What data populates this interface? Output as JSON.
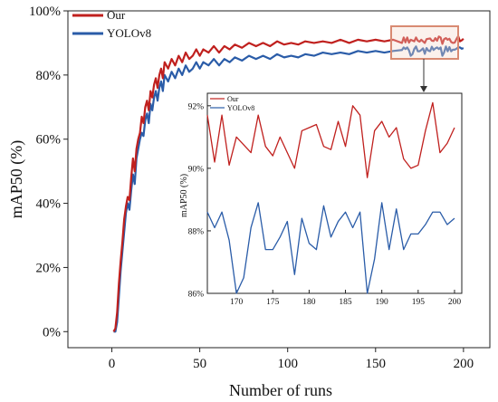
{
  "chart_data": [
    {
      "type": "line",
      "xlabel": "Number of runs",
      "ylabel": "mAP50 (%)",
      "xlim": [
        -25,
        215
      ],
      "ylim": [
        -5,
        100
      ],
      "xticks": [
        0,
        50,
        100,
        150,
        200
      ],
      "xtick_labels": [
        "0",
        "50",
        "100",
        "150",
        "200"
      ],
      "yticks": [
        0,
        20,
        40,
        60,
        80,
        100
      ],
      "ytick_labels": [
        "0%",
        "20%",
        "40%",
        "60%",
        "80%",
        "100%"
      ],
      "legend_position": "top-left",
      "colors": {
        "Our": "#c0201e",
        "YOLOv8": "#2a5ca8"
      },
      "series": [
        {
          "name": "Our",
          "points": [
            [
              1,
              0
            ],
            [
              2,
              1
            ],
            [
              3,
              6
            ],
            [
              4,
              15
            ],
            [
              5,
              22
            ],
            [
              6,
              28
            ],
            [
              7,
              35
            ],
            [
              8,
              39
            ],
            [
              9,
              42
            ],
            [
              10,
              41
            ],
            [
              11,
              48
            ],
            [
              12,
              54
            ],
            [
              13,
              50
            ],
            [
              14,
              57
            ],
            [
              15,
              60
            ],
            [
              16,
              62
            ],
            [
              17,
              67
            ],
            [
              18,
              65
            ],
            [
              19,
              70
            ],
            [
              20,
              72
            ],
            [
              21,
              69
            ],
            [
              22,
              75
            ],
            [
              23,
              73
            ],
            [
              24,
              77
            ],
            [
              25,
              79
            ],
            [
              26,
              76
            ],
            [
              27,
              80
            ],
            [
              28,
              82
            ],
            [
              29,
              79
            ],
            [
              30,
              84
            ],
            [
              32,
              82
            ],
            [
              34,
              85
            ],
            [
              36,
              83
            ],
            [
              38,
              86
            ],
            [
              40,
              84
            ],
            [
              42,
              87
            ],
            [
              44,
              85
            ],
            [
              46,
              86
            ],
            [
              48,
              88
            ],
            [
              50,
              86
            ],
            [
              52,
              88
            ],
            [
              55,
              87
            ],
            [
              58,
              89
            ],
            [
              61,
              87
            ],
            [
              64,
              89
            ],
            [
              67,
              88
            ],
            [
              70,
              89.5
            ],
            [
              74,
              88.5
            ],
            [
              78,
              90
            ],
            [
              82,
              89
            ],
            [
              86,
              90
            ],
            [
              90,
              89
            ],
            [
              94,
              90.5
            ],
            [
              98,
              89.5
            ],
            [
              102,
              90
            ],
            [
              106,
              89.5
            ],
            [
              110,
              90.5
            ],
            [
              115,
              90
            ],
            [
              120,
              90.5
            ],
            [
              125,
              90
            ],
            [
              130,
              91
            ],
            [
              135,
              90
            ],
            [
              140,
              91
            ],
            [
              145,
              90.5
            ],
            [
              150,
              91
            ],
            [
              155,
              90.5
            ],
            [
              160,
              91
            ],
            [
              165,
              90
            ],
            [
              166,
              91.7
            ],
            [
              167,
              90.2
            ],
            [
              168,
              91.7
            ],
            [
              169,
              90.1
            ],
            [
              170,
              91.0
            ],
            [
              172,
              90.5
            ],
            [
              173,
              91.7
            ],
            [
              174,
              90.7
            ],
            [
              175,
              90.4
            ],
            [
              176,
              91.0
            ],
            [
              177,
              90.5
            ],
            [
              178,
              90.0
            ],
            [
              179,
              91.2
            ],
            [
              180,
              91.3
            ],
            [
              181,
              91.4
            ],
            [
              182,
              90.7
            ],
            [
              183,
              90.6
            ],
            [
              184,
              91.5
            ],
            [
              185,
              90.7
            ],
            [
              186,
              92.0
            ],
            [
              187,
              91.7
            ],
            [
              188,
              89.7
            ],
            [
              189,
              91.2
            ],
            [
              190,
              91.5
            ],
            [
              191,
              91.0
            ],
            [
              192,
              91.3
            ],
            [
              193,
              90.3
            ],
            [
              194,
              90.0
            ],
            [
              195,
              90.1
            ],
            [
              196,
              91.2
            ],
            [
              197,
              92.1
            ],
            [
              198,
              90.5
            ],
            [
              199,
              90.8
            ],
            [
              200,
              91.3
            ]
          ]
        },
        {
          "name": "YOLOv8",
          "points": [
            [
              1,
              0
            ],
            [
              2,
              0
            ],
            [
              3,
              3
            ],
            [
              4,
              11
            ],
            [
              5,
              19
            ],
            [
              6,
              25
            ],
            [
              7,
              31
            ],
            [
              8,
              37
            ],
            [
              9,
              40
            ],
            [
              10,
              38
            ],
            [
              11,
              44
            ],
            [
              12,
              49
            ],
            [
              13,
              46
            ],
            [
              14,
              54
            ],
            [
              15,
              57
            ],
            [
              16,
              60
            ],
            [
              17,
              62
            ],
            [
              18,
              61
            ],
            [
              19,
              66
            ],
            [
              20,
              68
            ],
            [
              21,
              65
            ],
            [
              22,
              71
            ],
            [
              23,
              69
            ],
            [
              24,
              73
            ],
            [
              25,
              75
            ],
            [
              26,
              72
            ],
            [
              27,
              76
            ],
            [
              28,
              78
            ],
            [
              29,
              75
            ],
            [
              30,
              80
            ],
            [
              32,
              78
            ],
            [
              34,
              81
            ],
            [
              36,
              79
            ],
            [
              38,
              82
            ],
            [
              40,
              80
            ],
            [
              42,
              83
            ],
            [
              44,
              81
            ],
            [
              46,
              82
            ],
            [
              48,
              84
            ],
            [
              50,
              82
            ],
            [
              52,
              84
            ],
            [
              55,
              83
            ],
            [
              58,
              85
            ],
            [
              61,
              83
            ],
            [
              64,
              85
            ],
            [
              67,
              84
            ],
            [
              70,
              85.5
            ],
            [
              74,
              84.5
            ],
            [
              78,
              86
            ],
            [
              82,
              85
            ],
            [
              86,
              86
            ],
            [
              90,
              85
            ],
            [
              94,
              86.5
            ],
            [
              98,
              85.5
            ],
            [
              102,
              86
            ],
            [
              106,
              85.5
            ],
            [
              110,
              86.5
            ],
            [
              115,
              86
            ],
            [
              120,
              87
            ],
            [
              125,
              86.5
            ],
            [
              130,
              87
            ],
            [
              135,
              86.5
            ],
            [
              140,
              87.5
            ],
            [
              145,
              87
            ],
            [
              150,
              87.5
            ],
            [
              155,
              87
            ],
            [
              160,
              87.5
            ],
            [
              165,
              87.8
            ],
            [
              166,
              88.6
            ],
            [
              167,
              88.1
            ],
            [
              168,
              88.6
            ],
            [
              169,
              87.7
            ],
            [
              170,
              86.0
            ],
            [
              171,
              86.5
            ],
            [
              172,
              88.1
            ],
            [
              173,
              88.9
            ],
            [
              174,
              87.4
            ],
            [
              175,
              87.4
            ],
            [
              176,
              87.8
            ],
            [
              177,
              88.3
            ],
            [
              178,
              86.6
            ],
            [
              179,
              88.4
            ],
            [
              180,
              87.6
            ],
            [
              181,
              87.4
            ],
            [
              182,
              88.8
            ],
            [
              183,
              87.8
            ],
            [
              184,
              88.3
            ],
            [
              185,
              88.6
            ],
            [
              186,
              88.1
            ],
            [
              187,
              88.6
            ],
            [
              188,
              86.0
            ],
            [
              189,
              87.1
            ],
            [
              190,
              88.9
            ],
            [
              191,
              87.4
            ],
            [
              192,
              88.7
            ],
            [
              193,
              87.4
            ],
            [
              194,
              87.9
            ],
            [
              195,
              87.9
            ],
            [
              196,
              88.2
            ],
            [
              197,
              88.6
            ],
            [
              198,
              88.6
            ],
            [
              199,
              88.2
            ],
            [
              200,
              88.4
            ]
          ]
        }
      ]
    },
    {
      "type": "line",
      "role": "inset",
      "xlabel": "",
      "ylabel": "mAP50 (%)",
      "xlim": [
        166,
        201
      ],
      "ylim": [
        86,
        92.4
      ],
      "xticks": [
        170,
        175,
        180,
        185,
        190,
        195,
        200
      ],
      "xtick_labels": [
        "170",
        "175",
        "180",
        "185",
        "190",
        "195",
        "200"
      ],
      "yticks": [
        86,
        88,
        90,
        92
      ],
      "ytick_labels": [
        "86%",
        "88%",
        "90%",
        "92%"
      ],
      "legend_position": "top-left",
      "series_refs": [
        "Our",
        "YOLOv8"
      ],
      "range": [
        166,
        200
      ]
    }
  ]
}
